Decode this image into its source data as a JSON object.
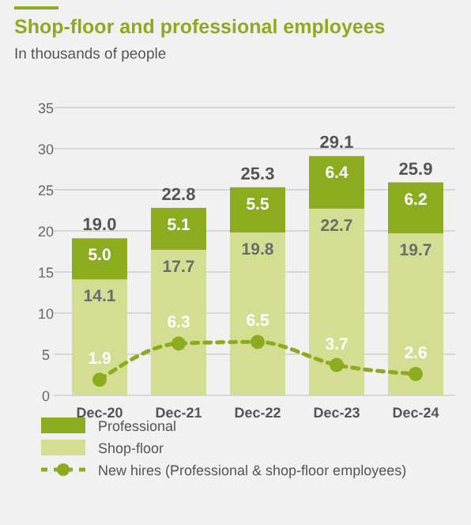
{
  "chart_data": {
    "type": "bar",
    "title": "Shop-floor and professional employees",
    "subtitle": "In thousands of people",
    "categories": [
      "Dec-20",
      "Dec-21",
      "Dec-22",
      "Dec-23",
      "Dec-24"
    ],
    "stacked": true,
    "series": [
      {
        "name": "Shop-floor",
        "color": "#d3de93",
        "values": [
          14.1,
          17.7,
          19.8,
          22.7,
          19.7
        ],
        "value_labels": [
          "14.1",
          "17.7",
          "19.8",
          "22.7",
          "19.7"
        ]
      },
      {
        "name": "Professional",
        "color": "#8cab1f",
        "values": [
          5.0,
          5.1,
          5.5,
          6.4,
          6.2
        ],
        "value_labels": [
          "5.0",
          "5.1",
          "5.5",
          "6.4",
          "6.2"
        ]
      },
      {
        "name": "New hires (Professional & shop-floor employees)",
        "type": "line",
        "color": "#8cab1f",
        "values": [
          1.9,
          6.3,
          6.5,
          3.7,
          2.6
        ],
        "value_labels": [
          "1.9",
          "6.3",
          "6.5",
          "3.7",
          "2.6"
        ],
        "line_style": "dashed",
        "marker": "circle"
      }
    ],
    "totals": [
      "19.0",
      "22.8",
      "25.3",
      "29.1",
      "25.9"
    ],
    "ylim": [
      0,
      35
    ],
    "yticks": [
      0,
      5,
      10,
      15,
      20,
      25,
      30,
      35
    ],
    "grid": "y",
    "legend": "bottom"
  }
}
